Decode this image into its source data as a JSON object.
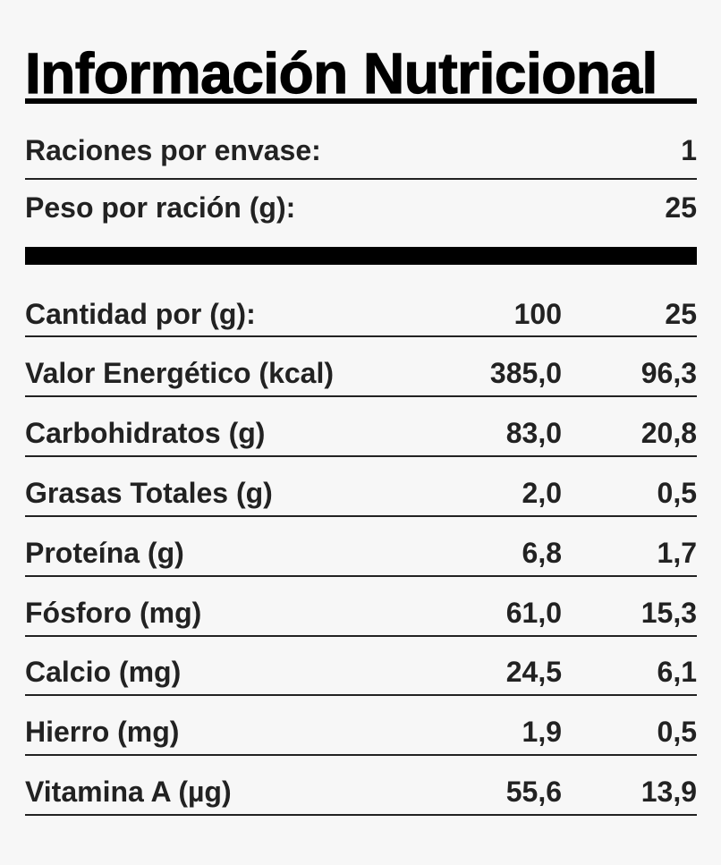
{
  "title": "Información Nutricional",
  "serving": {
    "servings_label": "Raciones por envase:",
    "servings_value": "1",
    "weight_label": "Peso por ración (g):",
    "weight_value": "25"
  },
  "header": {
    "label": "Cantidad por (g):",
    "col1": "100",
    "col2": "25"
  },
  "nutrients": [
    {
      "label": "Valor Energético (kcal)",
      "per100": "385,0",
      "perServing": "96,3"
    },
    {
      "label": "Carbohidratos (g)",
      "per100": "83,0",
      "perServing": "20,8"
    },
    {
      "label": "Grasas Totales (g)",
      "per100": "2,0",
      "perServing": "0,5"
    },
    {
      "label": "Proteína (g)",
      "per100": "6,8",
      "perServing": "1,7"
    },
    {
      "label": "Fósforo (mg)",
      "per100": "61,0",
      "perServing": "15,3"
    },
    {
      "label": "Calcio (mg)",
      "per100": "24,5",
      "perServing": "6,1"
    },
    {
      "label": "Hierro (mg)",
      "per100": "1,9",
      "perServing": "0,5"
    },
    {
      "label": "Vitamina A (µg)",
      "per100": "55,6",
      "perServing": "13,9"
    }
  ]
}
